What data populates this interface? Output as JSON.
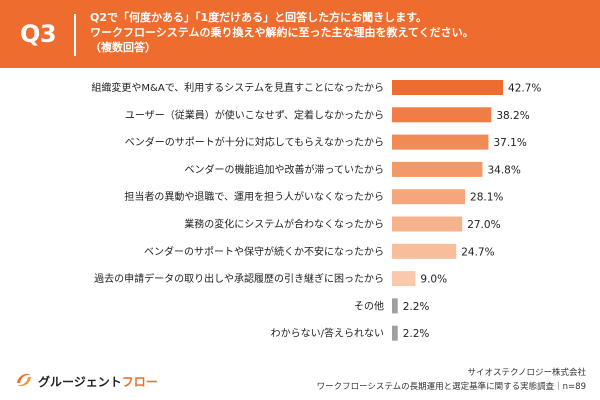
{
  "header": {
    "question_number": "Q3",
    "line1": "Q2で「何度かある」「1度だけある」と回答した方にお聞きします。",
    "line2": "ワークフローシステムの乗り換えや解約に至った主な理由を教えてください。",
    "line3": "（複数回答）"
  },
  "chart_data": {
    "type": "bar",
    "orientation": "horizontal",
    "categories": [
      "組織変更やM&Aで、利用するシステムを見直すことになったから",
      "ユーザー（従業員）が使いこなせず、定着しなかったから",
      "ベンダーのサポートが十分に対応してもらえなかったから",
      "ベンダーの機能追加や改善が滞っていたから",
      "担当者の異動や退職で、運用を担う人がいなくなったから",
      "業務の変化にシステムが合わなくなったから",
      "ベンダーのサポートや保守が続くか不安になったから",
      "過去の申請データの取り出しや承認履歴の引き継ぎに困ったから",
      "その他",
      "わからない/答えられない"
    ],
    "values": [
      42.7,
      38.2,
      37.1,
      34.8,
      28.1,
      27.0,
      24.7,
      9.0,
      2.2,
      2.2
    ],
    "value_labels": [
      "42.7%",
      "38.2%",
      "37.1%",
      "34.8%",
      "28.1%",
      "27.0%",
      "24.7%",
      "9.0%",
      "2.2%",
      "2.2%"
    ],
    "bar_colors": [
      "#ee6c2d",
      "#f07d45",
      "#f18a55",
      "#f39968",
      "#f5a67a",
      "#f6b28a",
      "#f8bd9b",
      "#fac8ab",
      "#a0a0a0",
      "#a0a0a0"
    ],
    "xlim": [
      0,
      50
    ],
    "grid": false,
    "legend": "none"
  },
  "footer": {
    "brand_part1": "グルージェント",
    "brand_part2": "フロー",
    "company": "サイオステクノロジー株式会社",
    "survey": "ワークフローシステムの長期運用と選定基準に関する実態調査｜n=89"
  },
  "colors": {
    "accent": "#ee6c2d",
    "other_bars": "#a0a0a0",
    "text": "#222222"
  },
  "icons": {
    "logo": "orange-swoosh-logo"
  }
}
